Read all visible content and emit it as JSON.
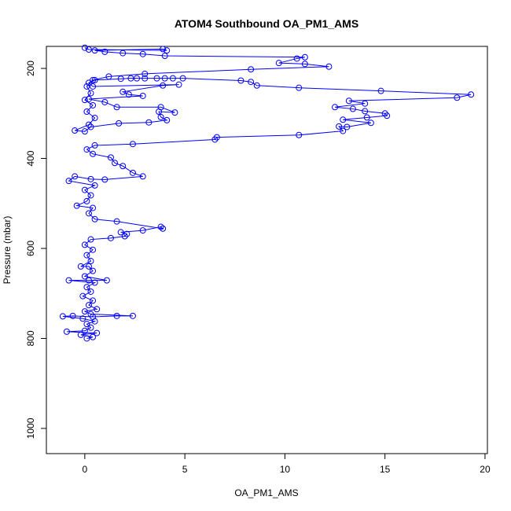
{
  "chart_data": {
    "type": "line",
    "markers": "circle",
    "color": "#0000ff",
    "title": "ATOM4 Southbound OA_PM1_AMS",
    "x_label": "OA_PM1_AMS",
    "y_label": "Pressure (mbar)",
    "xlim": [
      -1.92,
      20.12
    ],
    "ylim": [
      151,
      1056
    ],
    "y_reversed": true,
    "xticks": [
      0,
      5,
      10,
      15,
      20
    ],
    "yticks": [
      200,
      400,
      600,
      800,
      1000
    ],
    "x": [
      0.1,
      0.4,
      -0.2,
      0.6,
      -0.9,
      0.0,
      0.3,
      0.1,
      0.5,
      -0.1,
      -1.1,
      -0.6,
      0.4,
      1.6,
      2.4,
      0.3,
      0.0,
      0.6,
      0.2,
      0.4,
      -0.1,
      0.3,
      0.1,
      0.5,
      -0.8,
      0.2,
      1.1,
      0.0,
      0.4,
      0.2,
      -0.2,
      0.3,
      0.1,
      0.4,
      0.0,
      0.3,
      1.3,
      2.0,
      2.1,
      1.8,
      2.9,
      3.8,
      3.9,
      1.6,
      0.5,
      0.2,
      0.4,
      -0.4,
      0.1,
      0.3,
      0.0,
      0.5,
      -0.8,
      -0.5,
      0.3,
      1.0,
      2.9,
      2.4,
      1.9,
      1.5,
      1.3,
      0.4,
      0.1,
      0.5,
      2.4,
      6.5,
      6.6,
      10.7,
      12.9,
      12.7,
      13.1,
      14.3,
      12.9,
      14.1,
      15.1,
      15.0,
      14.0,
      13.4,
      12.5,
      14.0,
      13.2,
      18.6,
      19.3,
      14.8,
      10.7,
      8.6,
      8.3,
      7.8,
      4.9,
      4.4,
      4.0,
      3.6,
      3.0,
      2.6,
      2.3,
      1.8,
      0.5,
      0.2,
      0.4,
      4.7,
      3.9,
      1.9,
      2.2,
      2.9,
      0.2,
      1.0,
      1.6,
      3.8,
      4.5,
      3.7,
      3.8,
      4.1,
      3.2,
      1.7,
      0.3,
      0.0,
      -0.5,
      0.2,
      0.5,
      0.1,
      0.4,
      0.0,
      0.3,
      0.1,
      0.4,
      1.2,
      3.0,
      8.3,
      12.2,
      11.0,
      9.7,
      10.6,
      11.0,
      4.0,
      2.9,
      1.9,
      1.0,
      0.5,
      3.9,
      4.1,
      0.2,
      0.0
    ],
    "values": [
      800,
      797,
      792,
      788,
      785,
      783,
      776,
      768,
      762,
      756,
      751,
      750,
      752,
      750,
      750,
      746,
      740,
      735,
      726,
      716,
      706,
      696,
      686,
      676,
      671,
      671,
      671,
      662,
      650,
      640,
      640,
      628,
      615,
      603,
      592,
      580,
      577,
      573,
      568,
      564,
      560,
      552,
      556,
      540,
      535,
      522,
      510,
      505,
      495,
      482,
      470,
      460,
      450,
      440,
      446,
      447,
      440,
      432,
      417,
      410,
      398,
      390,
      380,
      371,
      368,
      358,
      353,
      348,
      339,
      329,
      330,
      321,
      314,
      309,
      305,
      300,
      295,
      290,
      286,
      278,
      272,
      265,
      258,
      250,
      243,
      238,
      230,
      227,
      222,
      222,
      222,
      222,
      222,
      222,
      222,
      223,
      226,
      232,
      240,
      236,
      238,
      252,
      258,
      261,
      268,
      275,
      286,
      286,
      298,
      296,
      308,
      315,
      320,
      322,
      330,
      340,
      338,
      325,
      310,
      296,
      282,
      270,
      255,
      240,
      226,
      218,
      212,
      202,
      196,
      190,
      188,
      178,
      175,
      172,
      168,
      166,
      163,
      160,
      157,
      160,
      158,
      154
    ]
  }
}
